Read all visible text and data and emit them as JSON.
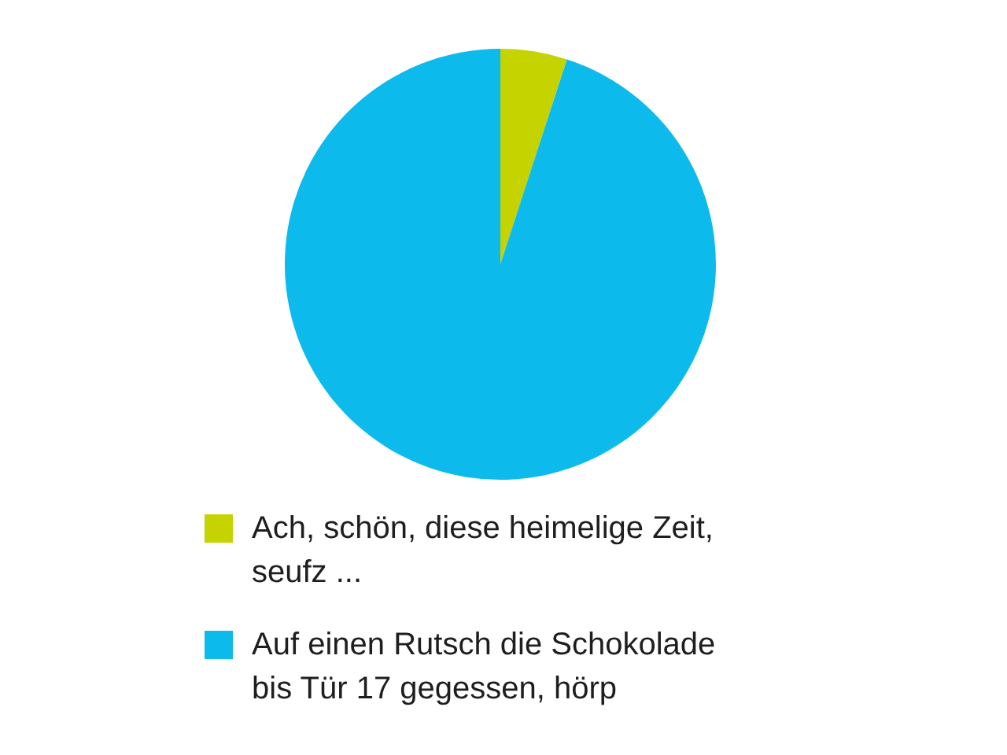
{
  "chart_data": {
    "type": "pie",
    "categories": [
      "Ach, schön, diese heimelige Zeit, seufz ...",
      "Auf einen Rutsch die Schokolade bis Tür 17 gegessen, hörp"
    ],
    "values": [
      5,
      95
    ],
    "colors": [
      "#c5d300",
      "#0dbaec"
    ],
    "legend": "bottom"
  }
}
